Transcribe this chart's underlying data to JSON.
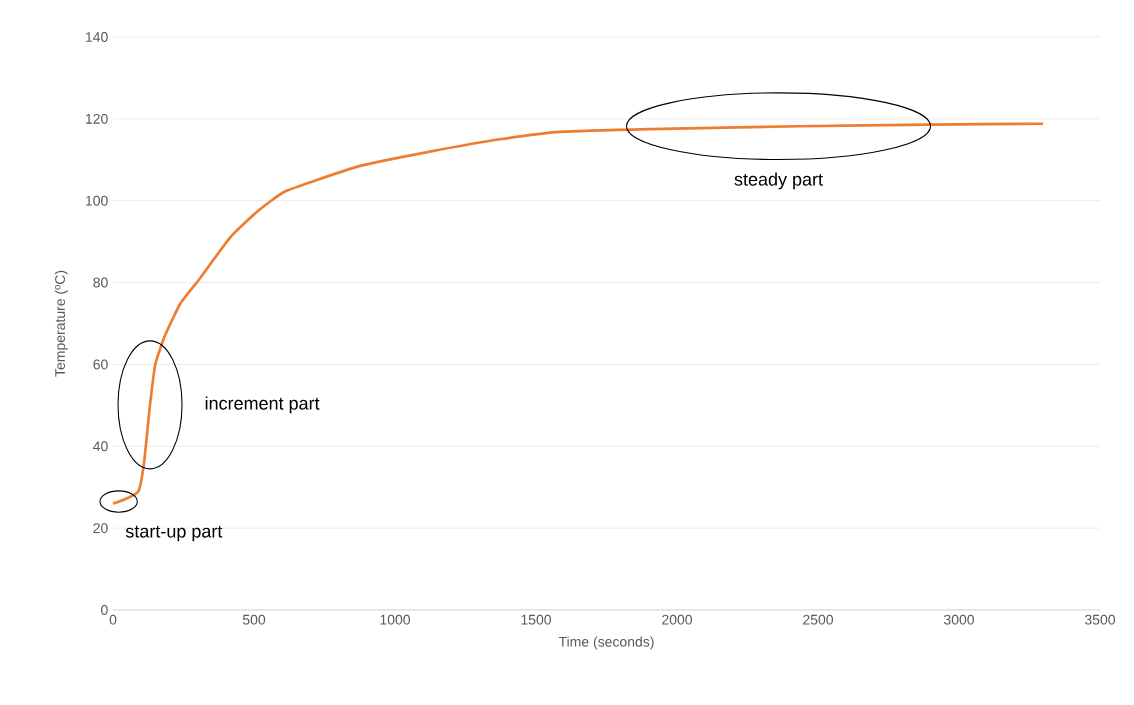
{
  "chart_data": {
    "type": "line",
    "xlabel": "Time (seconds)",
    "ylabel": "Temperature (ºC)",
    "x": [
      0,
      40,
      90,
      110,
      131,
      150,
      184,
      240,
      308,
      415,
      514,
      603,
      700,
      876,
      1124,
      1372,
      1585,
      1904,
      2436,
      2900,
      3298
    ],
    "series": [
      {
        "color": "#ed7d31",
        "values": [
          26,
          27,
          29,
          36,
          50,
          60,
          67,
          75,
          81,
          91,
          97.5,
          102,
          104.5,
          108.5,
          112,
          115,
          116.8,
          117.5,
          118.2,
          118.6,
          118.8
        ]
      }
    ],
    "xlim": [
      0,
      3500
    ],
    "xticks": [
      0,
      500,
      1000,
      1500,
      2000,
      2500,
      3000,
      3500
    ],
    "ylim": [
      0,
      140
    ],
    "yticks": [
      0,
      20,
      40,
      60,
      80,
      100,
      120,
      140
    ],
    "grid": "y",
    "marker": "none",
    "line_style": "solid",
    "annotations": [
      {
        "text": "start-up part",
        "x": 20,
        "y": 26.5
      },
      "increment part",
      {
        "text": "steady part",
        "x": 2360,
        "y": 118.2
      }
    ]
  }
}
